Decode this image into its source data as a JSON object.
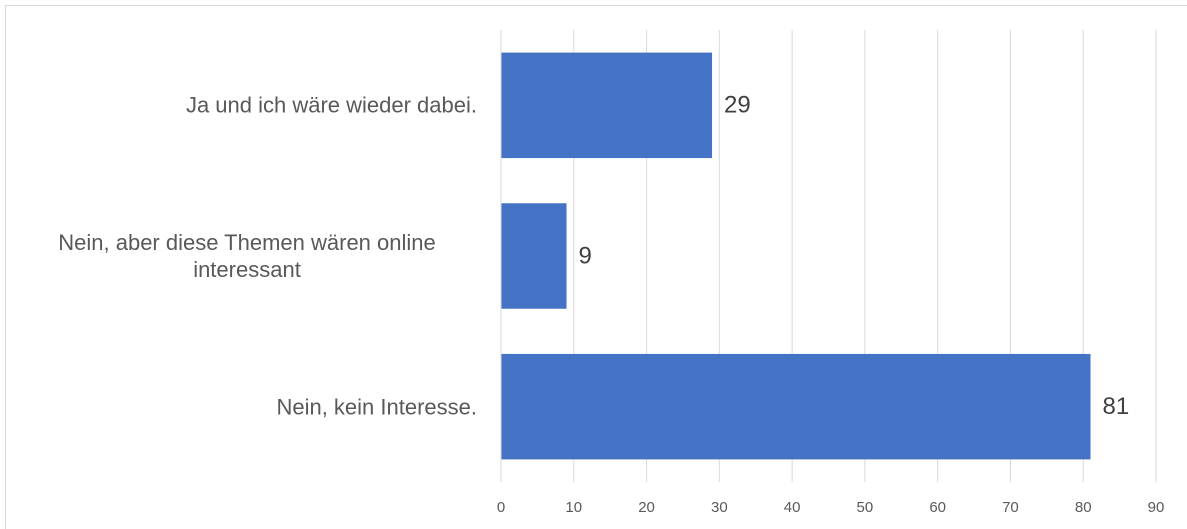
{
  "chart_data": {
    "type": "bar",
    "orientation": "horizontal",
    "categories": [
      "Ja und ich wäre wieder dabei.",
      "Nein, aber diese Themen wären online interessant",
      "Nein, kein Interesse."
    ],
    "values": [
      29,
      9,
      81
    ],
    "color": "#4472c4",
    "xlim": [
      0,
      90
    ],
    "xticks": [
      0,
      10,
      20,
      30,
      40,
      50,
      60,
      70,
      80,
      90
    ],
    "grid": true
  }
}
